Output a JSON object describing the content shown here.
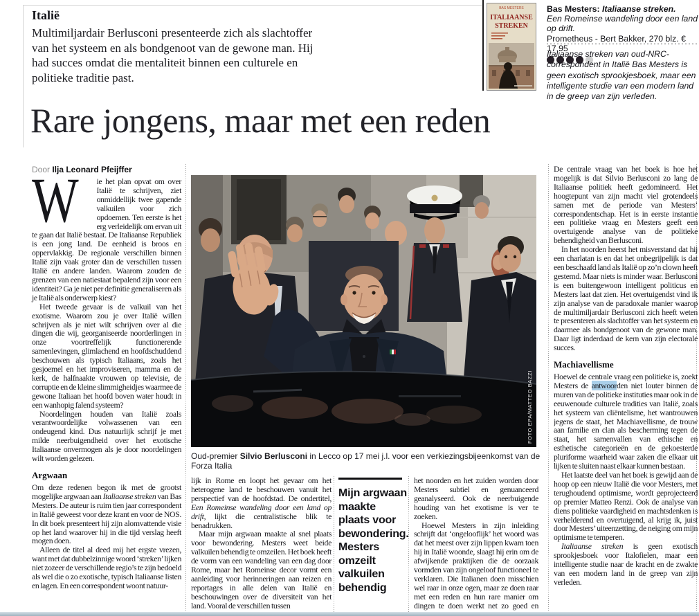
{
  "kicker": {
    "label": "Italië",
    "intro": "Multimiljardair Berlusconi presenteerde zich als slachtoffer van het systeem en als bondgenoot van de gewone man. Hij had succes omdat die mentaliteit binnen een culturele en politieke traditie past."
  },
  "book": {
    "author_prefix": "Bas Mesters: ",
    "title": "Italiaanse streken.",
    "subtitle": "Een Romeinse wandeling door een land op drift.",
    "publisher_line": "Prometheus - Bert Bakker, 270 blz. € 17,95",
    "rating_filled": 4,
    "rating_total": 5,
    "cover_author": "BAS MESTERS",
    "cover_title1": "ITALIAANSE",
    "cover_title2": "STREKEN",
    "summary": "Italiaanse streken van oud-NRC-correspondent in Italië Bas Mesters is geen exotisch sprookjesboek, maar een intelligente studie van een modern land in de greep van zijn verleden."
  },
  "headline": "Rare jongens, maar met een reden",
  "byline": {
    "prefix": "Door ",
    "author": "Ilja Leonard Pfeijffer"
  },
  "photo": {
    "caption": [
      "Oud-premier ",
      {
        "t": "Silvio Berlusconi",
        "s": "b"
      },
      " in Lecco op 17 mei j.l. voor een verkiezingsbijeenkomst van de Forza Italia"
    ],
    "credit": "FOTO EPA/MATTEO BAZZI"
  },
  "pull_quote": "Mijn argwaan maakte plaats voor bewondering. Mesters omzeilt valkuilen behendig",
  "colors": {
    "highlight_selection": "#aacfe9",
    "rating_filled": "#261f27",
    "rating_empty": "#cfcfcf",
    "bottom_bar": "#a9bac4"
  },
  "article": {
    "columns": [
      {
        "blocks": [
          {
            "k": "drop",
            "cap": "W",
            "segs": [
              "ie het plan opvat om over Italië te schrijven, ziet onmiddellijk twee gapende valkuilen voor zich opdoemen. Ten eerste is het erg verleidelijk om ervan uit te gaan dat Italië bestaat. De Italiaanse Republiek is een jong land. De eenheid is broos en oppervlakkig. De regionale verschillen binnen Italië zijn vaak groter dan de verschillen tussen Italië en andere landen. Waarom zouden de grenzen van een natiestaat bepalend zijn voor een identiteit? Ga je niet per definitie generaliseren als je Italië als onderwerp kiest?"
            ]
          },
          {
            "k": "p",
            "ind": true,
            "segs": [
              "Het tweede gevaar is de valkuil van het exotisme. Waarom zou je over Italië willen schrijven als je niet wilt schrijven over al die dingen die wij, georganiseerde noorderlingen in onze voortreffelijk functionerende samenlevingen, glimlachend en hoofdschuddend beschouwen als typisch Italiaans, zoals het gesjoemel en het improviseren, mamma en de kerk, de halfnaakte vrouwen op televisie, de corruptie en de kleine slimmigheidjes waarmee de gewone Italiaan het hoofd boven water houdt in een wanhopig falend systeem?"
            ]
          },
          {
            "k": "p",
            "ind": true,
            "segs": [
              "Noordelingen houden van Italië zoals verantwoordelijke volwassenen van een ondeugend kind. Dus natuurlijk schrijf je met milde neerbuigendheid over het exotische Italiaanse onvermogen als je door noordelingen wilt worden gelezen."
            ]
          },
          {
            "k": "h",
            "text": "Argwaan"
          },
          {
            "k": "p",
            "segs": [
              "Om deze redenen begon ik met de grootst mogelijke argwaan aan ",
              {
                "t": "Italiaanse streken",
                "s": "i"
              },
              " van Bas Mesters. De auteur is ruim tien jaar correspondent in Italië geweest voor deze krant en voor de NOS. In dit boek presenteert hij zijn alomvattende visie op het land waarover hij in die tijd verslag heeft mogen doen."
            ]
          },
          {
            "k": "p",
            "ind": true,
            "segs": [
              "Alleen de titel al deed mij het ergste vrezen, want met dat dubbelzinnige woord ‘streken’ lijken niet zozeer de verschillende regio’s te zijn bedoeld als wel die o zo exotische, typisch Italiaanse listen en lagen. En een correspondent woont natuur-"
            ]
          }
        ]
      },
      {
        "blocks": [
          {
            "k": "p",
            "segs": [
              "lijk in Rome en loopt het gevaar om het heterogene land te beschouwen vanuit het perspectief van de hoofdstad. De ondertitel, ",
              {
                "t": "Een Romeinse wandeling door een land op drift",
                "s": "i"
              },
              ", lijkt die centralistische blik te benadrukken."
            ]
          },
          {
            "k": "p",
            "ind": true,
            "segs": [
              "Maar mijn argwaan maakte al snel plaats voor bewondering. Mesters weet beide valkuilen behendig te omzeilen. Het boek heeft de vorm van een wandeling van een dag door Rome, maar het Romeinse decor vormt een aanleiding voor herinneringen aan reizen en reportages in alle delen van Italië en beschouwingen over de diversiteit van het land. Vooral de verschillen tussen"
            ]
          }
        ]
      },
      {
        "blocks": [
          {
            "k": "p",
            "segs": [
              "het noorden en het zuiden worden door Mesters subtiel en genuanceerd geanalyseerd. Ook de neerbuigende houding van het exotisme is ver te zoeken."
            ]
          },
          {
            "k": "p",
            "ind": true,
            "segs": [
              "Hoewel Mesters in zijn inleiding schrijft dat ‘ongelooflijk’ het woord was dat het meest over zijn lippen kwam toen hij in Italië woonde, slaagt hij erin om de afwijkende praktijken die de oorzaak vormden van zijn ongeloof functioneel te verklaren. Die Italianen doen misschien wel raar in onze ogen, maar ze doen raar met een reden en hun rare manier om dingen te doen werkt net zo goed en misschien wel beter dan wat wij normaal vinden."
            ]
          }
        ]
      },
      {
        "blocks": [
          {
            "k": "p",
            "segs": [
              "De centrale vraag van het boek is hoe het mogelijk is dat Silvio Berlusconi zo lang de Italiaanse politiek heeft gedomineerd. Het hoogtepunt van zijn macht viel grotendeels samen met de periode van Mesters’ correspondentschap. Het is in eerste instantie een politieke vraag en Mesters geeft een overtuigende analyse van de politieke behendigheid van Berlusconi."
            ]
          },
          {
            "k": "p",
            "ind": true,
            "segs": [
              "In het noorden heerst het misverstand dat hij een charlatan is en dat het onbegrijpelijk is dat een beschaafd land als Italië op zo’n clown heeft gestemd. Maar niets is minder waar. Berlusconi is een buitengewoon intelligent politicus en Mesters laat dat zien. Het overtuigendst vind ik zijn analyse van de paradoxale manier waarop de multimiljardair Berlusconi zich heeft weten te presenteren als slachtoffer van het systeem en daarmee als bondgenoot van de gewone man. Daar ligt inderdaad de kern van zijn electorale succes."
            ]
          },
          {
            "k": "h",
            "text": "Machiavellisme"
          },
          {
            "k": "p",
            "segs": [
              "Hoewel de centrale vraag een politieke is, zoekt Mesters de ",
              {
                "t": "antwoor",
                "s": "hl"
              },
              "den niet louter binnen de muren van de politieke instituties maar ook in de eeuwenoude culturele tradities van Italië, zoals het systeem van cliëntelisme, het wantrouwen jegens de staat, het Machiavellisme, de trouw aan familie en clan als bescherming tegen de staat, het samenvallen van ethische en esthetische categorieën en de gekoesterde pluriforme waarheid waar zaken die elkaar uit lijken te sluiten naast elkaar kunnen bestaan."
            ]
          },
          {
            "k": "p",
            "ind": true,
            "segs": [
              "Het laatste deel van het boek is gewijd aan de hoop op een nieuw Italië die voor Mesters, met terughoudend optimisme, wordt geprojecteerd op premier Matteo Renzi. Ook de analyse van diens politieke vaardigheid en machtsdenken is verhelderend en overtuigend, al krijg ik, juist door Mesters’ uiteenzetting, de neiging om mijn optimisme te temperen."
            ]
          },
          {
            "k": "p",
            "ind": true,
            "segs": [
              {
                "t": "Italiaanse streken",
                "s": "i"
              },
              " is geen exotisch sprookjesboek voor Italofielen, maar een intelligente studie naar de kracht en de zwakte van een modern land in de greep van zijn verleden."
            ]
          }
        ]
      }
    ]
  }
}
